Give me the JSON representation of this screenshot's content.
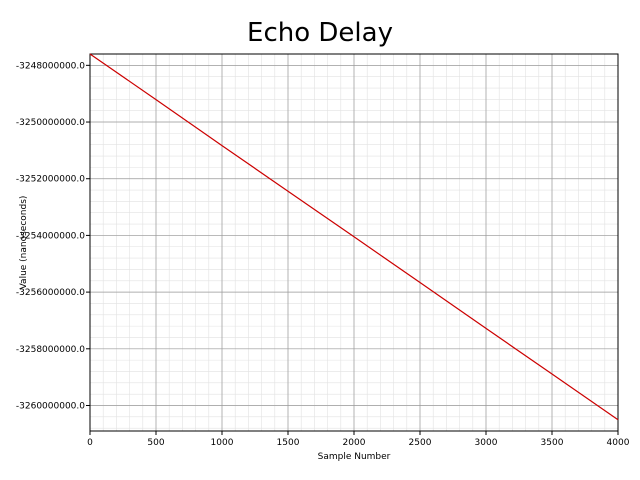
{
  "chart_data": {
    "type": "line",
    "title": "Echo Delay",
    "xlabel": "Sample Number",
    "ylabel": "Value (nanoseconds)",
    "xlim": [
      0,
      4000
    ],
    "ylim": [
      -3260900000,
      -3247600000
    ],
    "x_ticks": [
      0,
      500,
      1000,
      1500,
      2000,
      2500,
      3000,
      3500,
      4000
    ],
    "y_ticks": [
      -3248000000,
      -3250000000,
      -3252000000,
      -3254000000,
      -3256000000,
      -3258000000,
      -3260000000
    ],
    "y_tick_labels": [
      "-3248000000.0",
      "-3250000000.0",
      "-3252000000.0",
      "-3254000000.0",
      "-3256000000.0",
      "-3258000000.0",
      "-3260000000.0"
    ],
    "grid": true,
    "line_color": "#cc0000",
    "series": [
      {
        "x": [
          0,
          500,
          1000,
          1500,
          2000,
          2500,
          3000,
          3500,
          4000
        ],
        "values": [
          -3247600000,
          -3249210000,
          -3250830000,
          -3252440000,
          -3254050000,
          -3255660000,
          -3257280000,
          -3258890000,
          -3260500000
        ]
      }
    ]
  }
}
